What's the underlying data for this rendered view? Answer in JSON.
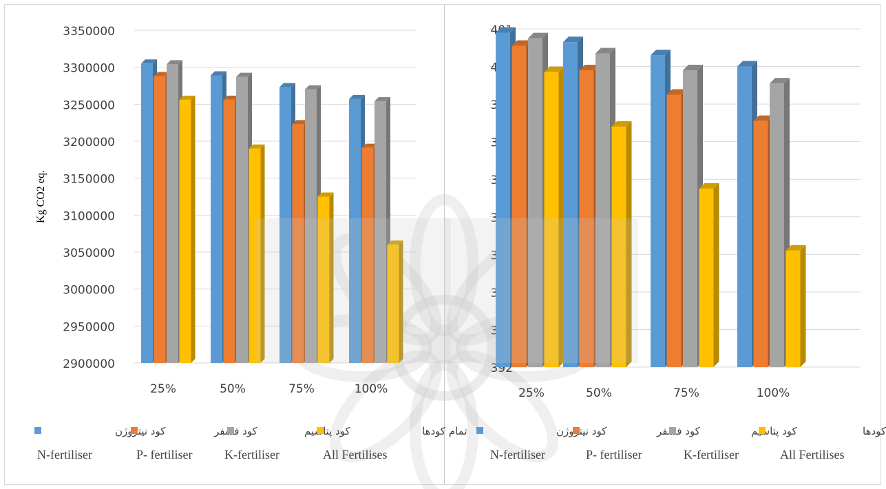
{
  "colors": {
    "n": "#5b9bd5",
    "p": "#ed7d31",
    "k": "#a5a5a5",
    "all": "#ffc000",
    "grid": "#d9d9d9",
    "text": "#404040"
  },
  "chart_data": [
    {
      "type": "bar",
      "categories": [
        "25%",
        "50%",
        "75%",
        "100%"
      ],
      "ylabel": "Kg CO2 eq.",
      "ylim": [
        2900000,
        3350000
      ],
      "ytick_step": 50000,
      "grid": true,
      "legend_position": "bottom",
      "series": [
        {
          "name": "N-fertiliser",
          "name_fa": "کود نیتروژن",
          "values": [
            3305000,
            3289000,
            3273000,
            3257000
          ]
        },
        {
          "name": "P- fertiliser",
          "name_fa": "کود فسفر",
          "values": [
            3288000,
            3256000,
            3223000,
            3191000
          ]
        },
        {
          "name": "K-fertiliser",
          "name_fa": "کود پتاسیم",
          "values": [
            3304000,
            3287000,
            3270000,
            3254000
          ]
        },
        {
          "name": "All Fertilises",
          "name_fa": "تمام کودها",
          "values": [
            3256000,
            3190000,
            3125000,
            3060000
          ]
        }
      ]
    },
    {
      "type": "bar",
      "categories": [
        "25%",
        "50%",
        "75%",
        "100%"
      ],
      "ylabel": "",
      "ylim": [
        392,
        401
      ],
      "ytick_step": 1,
      "grid": true,
      "legend_position": "bottom",
      "series": [
        {
          "name": "N-fertiliser",
          "name_fa": "کود نیتروژن",
          "values": [
            400.9,
            400.65,
            400.3,
            400.0
          ]
        },
        {
          "name": "P- fertiliser",
          "name_fa": "کود فسفر",
          "values": [
            400.55,
            399.9,
            399.25,
            398.55
          ]
        },
        {
          "name": "K-fertiliser",
          "name_fa": "کود پتاسیم",
          "values": [
            400.75,
            400.35,
            399.9,
            399.55
          ]
        },
        {
          "name": "All Fertilises",
          "name_fa": "تمام کودها",
          "values": [
            399.85,
            398.4,
            396.75,
            395.1
          ]
        }
      ]
    }
  ]
}
